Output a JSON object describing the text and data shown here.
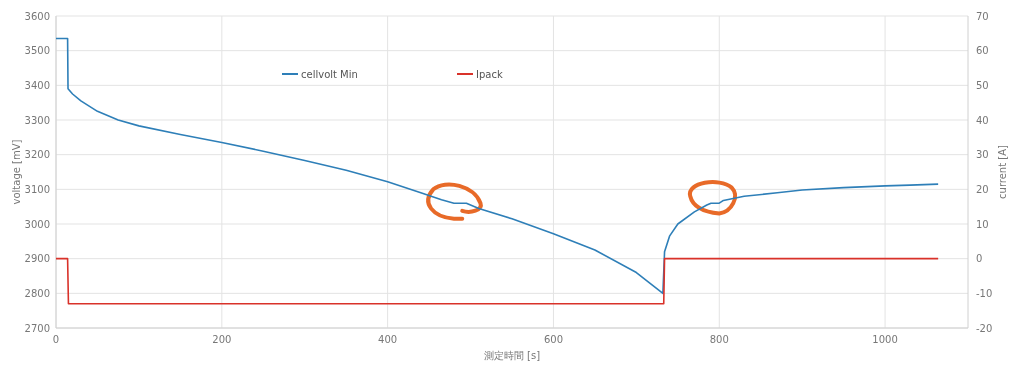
{
  "chart_data": {
    "type": "line",
    "xlabel": "測定時間 [s]",
    "ylabel": "voltage [mV]",
    "y2label": "current [A]",
    "xlim": [
      0,
      1100
    ],
    "xticks": [
      0,
      200,
      400,
      600,
      800,
      1000
    ],
    "ylim": [
      2700,
      3600
    ],
    "yticks": [
      2700,
      2800,
      2900,
      3000,
      3100,
      3200,
      3300,
      3400,
      3500,
      3600
    ],
    "y2lim": [
      -20,
      70
    ],
    "y2ticks": [
      -20,
      -10,
      0,
      10,
      20,
      30,
      40,
      50,
      60,
      70
    ],
    "grid": true,
    "legend": "top",
    "marker": "none",
    "line_style": "solid",
    "series": [
      {
        "name": "cellvolt Min",
        "color": "#2e7fb8",
        "x": [
          0,
          14,
          14.5,
          20,
          30,
          50,
          75,
          100,
          150,
          200,
          250,
          300,
          350,
          400,
          440,
          465,
          480,
          495,
          510,
          550,
          600,
          650,
          700,
          732,
          734,
          740,
          750,
          770,
          785,
          790,
          800,
          805,
          830,
          870,
          900,
          950,
          1000,
          1030,
          1064
        ],
        "values": [
          3535,
          3535,
          3390,
          3375,
          3355,
          3325,
          3300,
          3283,
          3258,
          3235,
          3210,
          3183,
          3155,
          3122,
          3090,
          3070,
          3060,
          3060,
          3045,
          3015,
          2972,
          2925,
          2860,
          2800,
          2920,
          2965,
          3000,
          3035,
          3055,
          3060,
          3060,
          3068,
          3080,
          3090,
          3098,
          3105,
          3110,
          3112,
          3115
        ]
      },
      {
        "name": "Ipack",
        "color": "#d9322a",
        "axis": "y2",
        "x": [
          0,
          14,
          15,
          733,
          734,
          1064
        ],
        "values": [
          0,
          0,
          -13,
          -13,
          0,
          0
        ]
      }
    ]
  }
}
